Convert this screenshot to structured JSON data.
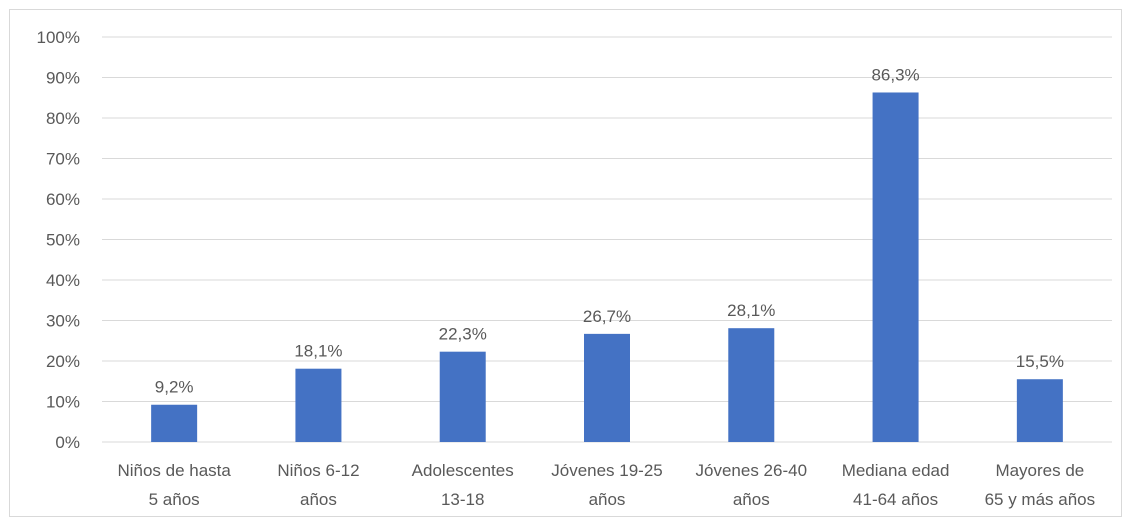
{
  "chart_data": {
    "type": "bar",
    "categories": [
      [
        "Niños de hasta",
        "5 años"
      ],
      [
        "Niños 6-12",
        "años"
      ],
      [
        "Adolescentes",
        "13-18"
      ],
      [
        "Jóvenes 19-25",
        "años"
      ],
      [
        "Jóvenes 26-40",
        "años"
      ],
      [
        "Mediana edad",
        "41-64 años"
      ],
      [
        "Mayores de",
        "65 y más años"
      ]
    ],
    "values": [
      9.2,
      18.1,
      22.3,
      26.7,
      28.1,
      86.3,
      15.5
    ],
    "data_labels": [
      "9,2%",
      "18,1%",
      "22,3%",
      "26,7%",
      "28,1%",
      "86,3%",
      "15,5%"
    ],
    "title": "",
    "xlabel": "",
    "ylabel": "",
    "ylim": [
      0,
      100
    ],
    "y_ticks": [
      "0%",
      "10%",
      "20%",
      "30%",
      "40%",
      "50%",
      "60%",
      "70%",
      "80%",
      "90%",
      "100%"
    ],
    "grid": true,
    "legend": "none",
    "colors": {
      "bar": "#4472C4",
      "grid": "#d9d9d9",
      "text": "#595959"
    }
  }
}
